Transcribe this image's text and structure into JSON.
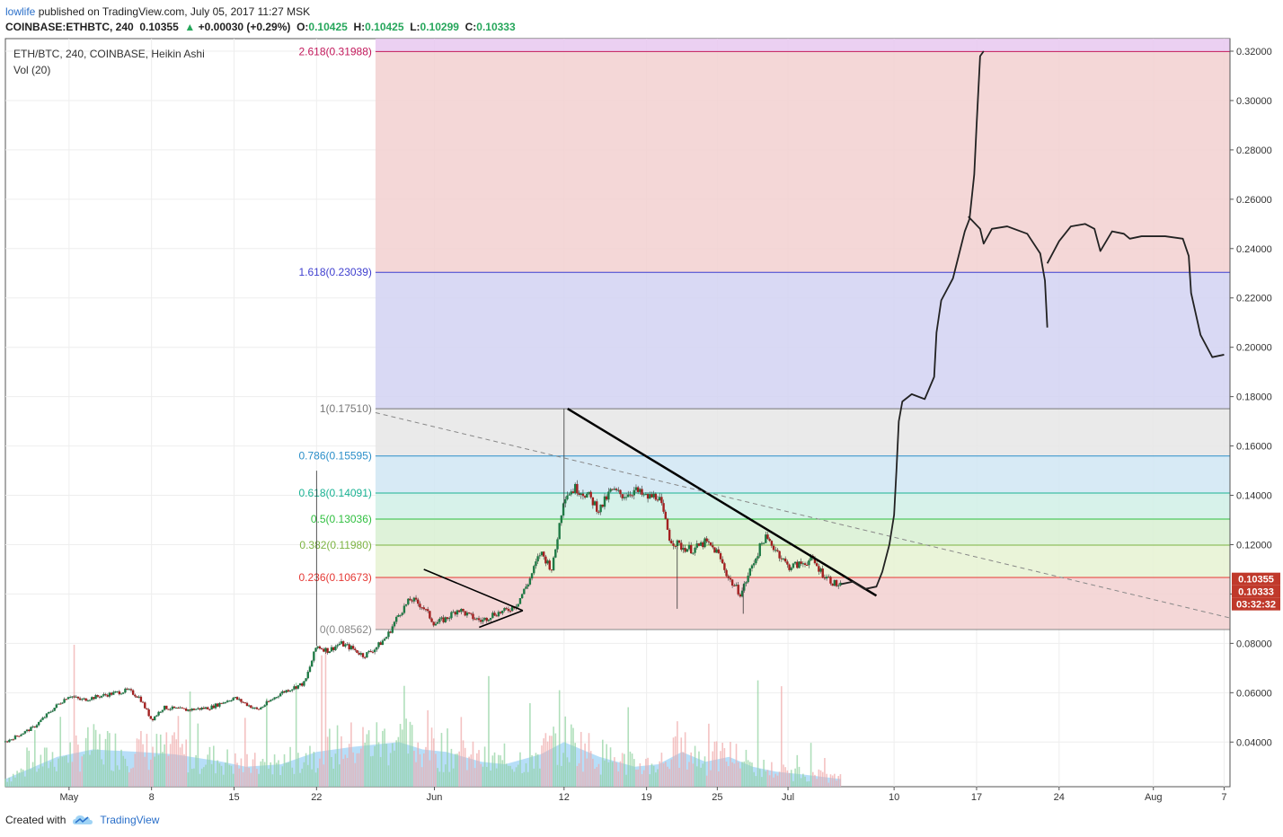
{
  "header": {
    "user": "lowlife",
    "published": " published on TradingView.com, July 05, 2017 11:27 MSK"
  },
  "quote": {
    "symbol": "COINBASE:ETHBTC, 240",
    "last": "0.10355",
    "change": "+0.00030 (+0.29%)",
    "o_label": "O:",
    "o": "0.10425",
    "h_label": "H:",
    "h": "0.10425",
    "l_label": "L:",
    "l": "0.10299",
    "c_label": "C:",
    "c": "0.10333"
  },
  "legend": {
    "series": "ETH/BTC, 240, COINBASE, Heikin Ashi",
    "volume": "Vol (20)"
  },
  "footer": {
    "created": "Created with",
    "brand": "TradingView"
  },
  "colors": {
    "up": "#26a65b",
    "down": "#c0392b",
    "volume": "#9fd3f5",
    "accent": "#2a6fc9"
  },
  "chart_data": {
    "type": "candlestick",
    "title": "ETH/BTC, 240, COINBASE, Heikin Ashi",
    "ylim": [
      0.0219,
      0.3251
    ],
    "y_ticks": [
      0.04,
      0.06,
      0.08,
      0.1,
      0.12,
      0.14,
      0.16,
      0.18,
      0.2,
      0.22,
      0.24,
      0.26,
      0.28,
      0.3,
      0.32
    ],
    "x_ticks": [
      {
        "label": "May",
        "day": 1
      },
      {
        "label": "8",
        "day": 8
      },
      {
        "label": "15",
        "day": 15
      },
      {
        "label": "22",
        "day": 22
      },
      {
        "label": "Jun",
        "day": 32
      },
      {
        "label": "12",
        "day": 43
      },
      {
        "label": "19",
        "day": 50
      },
      {
        "label": "25",
        "day": 56
      },
      {
        "label": "Jul",
        "day": 62
      },
      {
        "label": "10",
        "day": 71
      },
      {
        "label": "17",
        "day": 78
      },
      {
        "label": "24",
        "day": 85
      },
      {
        "label": "Aug",
        "day": 93
      },
      {
        "label": "7",
        "day": 99
      }
    ],
    "x_range_days": [
      -4.4,
      99.5
    ],
    "price_path": [
      [
        -4.4,
        0.04
      ],
      [
        -2,
        0.046
      ],
      [
        0,
        0.055
      ],
      [
        1,
        0.059
      ],
      [
        2,
        0.057
      ],
      [
        4,
        0.059
      ],
      [
        6,
        0.061
      ],
      [
        7,
        0.058
      ],
      [
        8,
        0.049
      ],
      [
        9,
        0.054
      ],
      [
        11,
        0.053
      ],
      [
        13,
        0.054
      ],
      [
        15,
        0.058
      ],
      [
        17,
        0.053
      ],
      [
        19,
        0.06
      ],
      [
        21,
        0.064
      ],
      [
        22,
        0.079
      ],
      [
        23,
        0.077
      ],
      [
        24,
        0.08
      ],
      [
        25,
        0.078
      ],
      [
        26,
        0.075
      ],
      [
        27,
        0.078
      ],
      [
        28,
        0.083
      ],
      [
        29,
        0.092
      ],
      [
        30,
        0.098
      ],
      [
        31,
        0.095
      ],
      [
        32,
        0.088
      ],
      [
        33,
        0.09
      ],
      [
        34,
        0.094
      ],
      [
        35,
        0.091
      ],
      [
        36,
        0.089
      ],
      [
        37,
        0.092
      ],
      [
        38,
        0.093
      ],
      [
        39,
        0.096
      ],
      [
        40,
        0.105
      ],
      [
        41,
        0.117
      ],
      [
        42,
        0.11
      ],
      [
        43,
        0.14
      ],
      [
        44,
        0.143
      ],
      [
        45,
        0.14
      ],
      [
        46,
        0.134
      ],
      [
        47,
        0.142
      ],
      [
        48,
        0.14
      ],
      [
        49,
        0.142
      ],
      [
        50,
        0.139
      ],
      [
        51,
        0.14
      ],
      [
        52,
        0.122
      ],
      [
        53,
        0.119
      ],
      [
        54,
        0.118
      ],
      [
        55,
        0.121
      ],
      [
        56,
        0.117
      ],
      [
        57,
        0.106
      ],
      [
        58,
        0.1
      ],
      [
        59,
        0.112
      ],
      [
        60,
        0.123
      ],
      [
        61,
        0.118
      ],
      [
        62,
        0.111
      ],
      [
        63,
        0.112
      ],
      [
        64,
        0.114
      ],
      [
        65,
        0.108
      ],
      [
        66,
        0.104
      ],
      [
        66.5,
        0.1033
      ]
    ],
    "volume_path": [
      [
        -4.4,
        0.025
      ],
      [
        0,
        0.034
      ],
      [
        3,
        0.037
      ],
      [
        7,
        0.036
      ],
      [
        10,
        0.035
      ],
      [
        14,
        0.032
      ],
      [
        16,
        0.03
      ],
      [
        19,
        0.031
      ],
      [
        22,
        0.036
      ],
      [
        25,
        0.038
      ],
      [
        27,
        0.039
      ],
      [
        29,
        0.04
      ],
      [
        31,
        0.037
      ],
      [
        33,
        0.036
      ],
      [
        36,
        0.032
      ],
      [
        38,
        0.031
      ],
      [
        41,
        0.035
      ],
      [
        43,
        0.04
      ],
      [
        46,
        0.034
      ],
      [
        49,
        0.03
      ],
      [
        51,
        0.031
      ],
      [
        53,
        0.036
      ],
      [
        55,
        0.032
      ],
      [
        57,
        0.034
      ],
      [
        59,
        0.03
      ],
      [
        61,
        0.028
      ],
      [
        63,
        0.027
      ],
      [
        66.5,
        0.025
      ]
    ],
    "fibonacci": {
      "start_day": 27.0,
      "levels": [
        {
          "label": "2.618(0.31988)",
          "ratio": 2.618,
          "price": 0.31988,
          "color": "#c2185b"
        },
        {
          "label": "1.618(0.23039)",
          "ratio": 1.618,
          "price": 0.23039,
          "color": "#3f3fcf"
        },
        {
          "label": "1(0.17510)",
          "ratio": 1,
          "price": 0.1751,
          "color": "#777777"
        },
        {
          "label": "0.786(0.15595)",
          "ratio": 0.786,
          "price": 0.15595,
          "color": "#2b8fc9"
        },
        {
          "label": "0.618(0.14091)",
          "ratio": 0.618,
          "price": 0.14091,
          "color": "#1ab394"
        },
        {
          "label": "0.5(0.13036)",
          "ratio": 0.5,
          "price": 0.13036,
          "color": "#2fbf3f"
        },
        {
          "label": "0.382(0.11980)",
          "ratio": 0.382,
          "price": 0.1198,
          "color": "#7cb342"
        },
        {
          "label": "0.236(0.10673)",
          "ratio": 0.236,
          "price": 0.10673,
          "color": "#e53935"
        },
        {
          "label": "0(0.08562)",
          "ratio": 0,
          "price": 0.08562,
          "color": "#888888"
        }
      ],
      "zones": [
        {
          "from": 0.31988,
          "to": 0.3251,
          "color": "#e8c8f0"
        },
        {
          "from": 0.23039,
          "to": 0.31988,
          "color": "#f2d0d0"
        },
        {
          "from": 0.1751,
          "to": 0.23039,
          "color": "#d2d2f2"
        },
        {
          "from": 0.15595,
          "to": 0.1751,
          "color": "#e6e6e6"
        },
        {
          "from": 0.14091,
          "to": 0.15595,
          "color": "#d0e6f3"
        },
        {
          "from": 0.13036,
          "to": 0.14091,
          "color": "#d0f0e6"
        },
        {
          "from": 0.1198,
          "to": 0.13036,
          "color": "#d8f0d2"
        },
        {
          "from": 0.10673,
          "to": 0.1198,
          "color": "#e6f2d2"
        },
        {
          "from": 0.08562,
          "to": 0.10673,
          "color": "#f2d0d0"
        }
      ]
    },
    "trendlines": [
      {
        "name": "descending-resistance",
        "points": [
          [
            43.3,
            0.1751
          ],
          [
            69.5,
            0.0993
          ]
        ]
      },
      {
        "name": "dashed-trend",
        "points": [
          [
            27.0,
            0.1735
          ],
          [
            99.5,
            0.0903
          ]
        ]
      },
      {
        "name": "triangle-upper",
        "points": [
          [
            31.1,
            0.11
          ],
          [
            39.5,
            0.0933
          ]
        ]
      },
      {
        "name": "triangle-lower",
        "points": [
          [
            35.8,
            0.0865
          ],
          [
            39.5,
            0.0933
          ]
        ]
      }
    ],
    "projection_path": [
      [
        66.5,
        0.104
      ],
      [
        67.5,
        0.105
      ],
      [
        68.5,
        0.102
      ],
      [
        69.5,
        0.103
      ],
      [
        70.0,
        0.109
      ],
      [
        70.6,
        0.12
      ],
      [
        71.0,
        0.132
      ],
      [
        71.2,
        0.15
      ],
      [
        71.4,
        0.17
      ],
      [
        71.7,
        0.178
      ],
      [
        72.5,
        0.181
      ],
      [
        73.6,
        0.179
      ],
      [
        74.4,
        0.188
      ],
      [
        74.6,
        0.206
      ],
      [
        75.0,
        0.219
      ],
      [
        76.0,
        0.228
      ],
      [
        77.0,
        0.247
      ],
      [
        77.4,
        0.252
      ],
      [
        77.8,
        0.27
      ],
      [
        78.0,
        0.29
      ],
      [
        78.3,
        0.318
      ],
      [
        78.6,
        0.32
      ]
    ],
    "projection_path2": [
      [
        77.3,
        0.253
      ],
      [
        78.3,
        0.248
      ],
      [
        78.6,
        0.242
      ],
      [
        79.3,
        0.248
      ],
      [
        80.6,
        0.249
      ],
      [
        82.3,
        0.246
      ],
      [
        83.4,
        0.238
      ],
      [
        83.8,
        0.227
      ],
      [
        84.0,
        0.208
      ]
    ],
    "projection_path3": [
      [
        84.0,
        0.234
      ],
      [
        85.0,
        0.243
      ],
      [
        86.0,
        0.249
      ],
      [
        87.2,
        0.25
      ],
      [
        88.0,
        0.248
      ],
      [
        88.5,
        0.239
      ],
      [
        89.5,
        0.247
      ],
      [
        90.5,
        0.246
      ],
      [
        91.0,
        0.244
      ],
      [
        92.0,
        0.245
      ],
      [
        94.0,
        0.245
      ],
      [
        95.5,
        0.244
      ],
      [
        96.0,
        0.237
      ],
      [
        96.2,
        0.222
      ],
      [
        97.0,
        0.205
      ],
      [
        98.0,
        0.196
      ],
      [
        99.0,
        0.197
      ]
    ],
    "price_labels": [
      {
        "text": "0.10355",
        "price": 0.10355,
        "color": "#c0392b"
      },
      {
        "text": "0.10333",
        "price": 0.10333,
        "color": "#c0392b"
      },
      {
        "text": "03:32:32",
        "price": 0.1003,
        "color": "#c0392b"
      }
    ]
  }
}
